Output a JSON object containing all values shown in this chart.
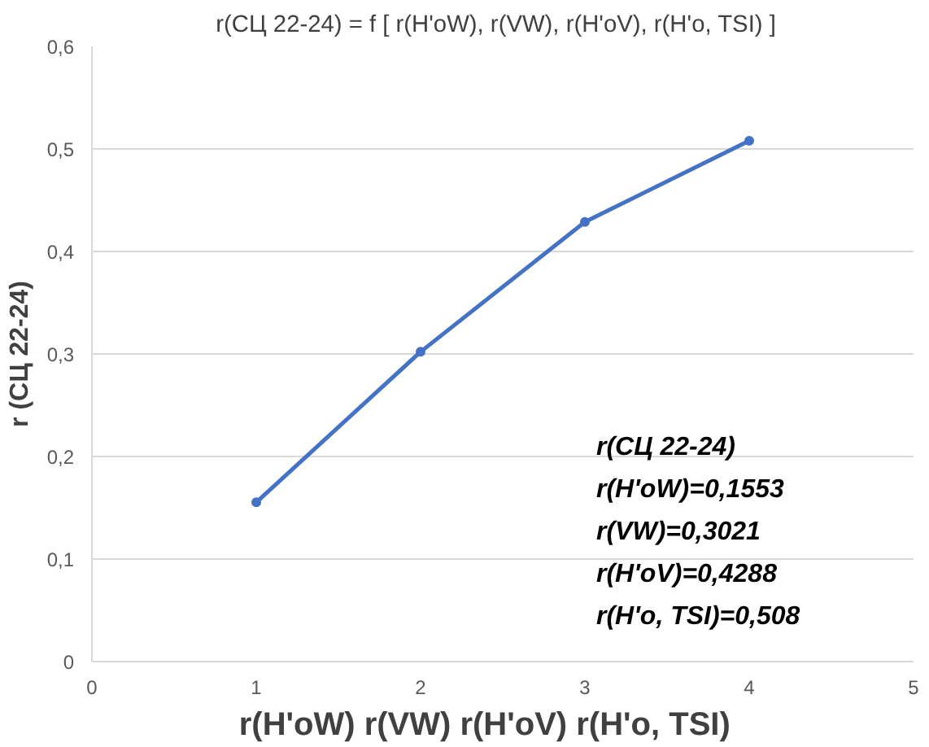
{
  "chart_data": {
    "type": "line",
    "title": "r(СЦ 22-24) = f [ r(H'oW), r(VW),  r(H'oV),  r(H'o, TSI) ]",
    "xlabel": "r(H'oW)    r(VW)  r(H'oV) r(H'o, TSI)",
    "ylabel": "r (СЦ 22-24)",
    "x": [
      1,
      2,
      3,
      4
    ],
    "series": [
      {
        "color": "#4472c4",
        "values": [
          0.1553,
          0.3021,
          0.4288,
          0.508
        ]
      }
    ],
    "xlim": [
      0,
      5
    ],
    "xticks": [
      0,
      1,
      2,
      3,
      4,
      5
    ],
    "ylim": [
      0,
      0.6
    ],
    "yticks": [
      0,
      {
        "value": 0.1,
        "label": "0,1"
      },
      {
        "value": 0.2,
        "label": "0,2"
      },
      {
        "value": 0.3,
        "label": "0,3"
      },
      {
        "value": 0.4,
        "label": "0,4"
      },
      {
        "value": 0.5,
        "label": "0,5"
      },
      {
        "value": 0.6,
        "label": "0,6"
      }
    ],
    "grid": "y",
    "marker": "circle",
    "line_style": "solid",
    "annotations": [
      "r(СЦ 22-24)",
      "r(H'oW)=0,1553",
      "r(VW)=0,3021",
      "r(H'oV)=0,4288",
      "r(H'o, TSI)=0,508"
    ]
  }
}
